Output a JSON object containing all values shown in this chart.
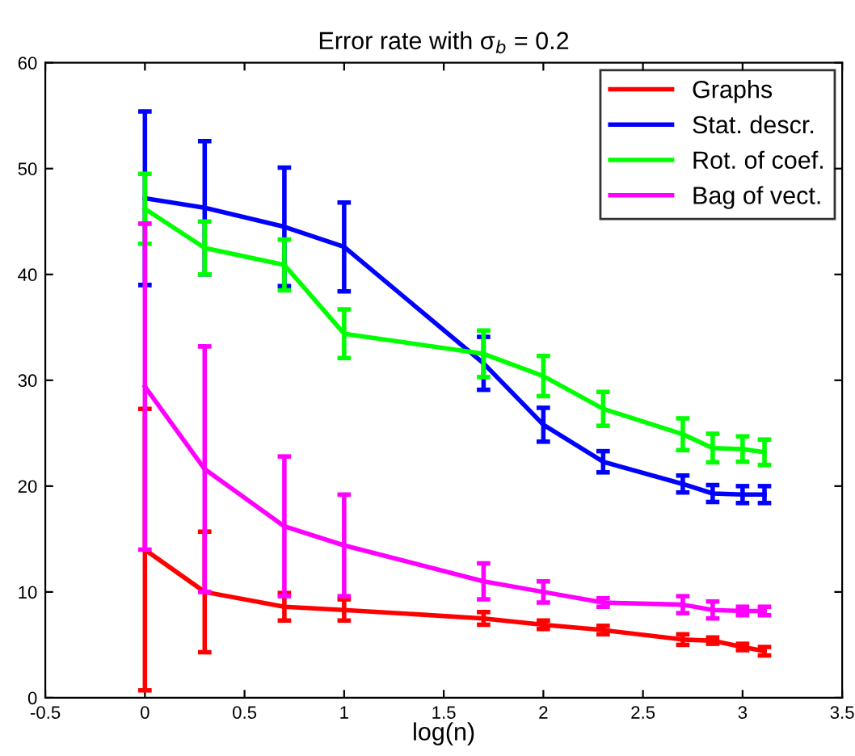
{
  "chart_data": {
    "type": "line",
    "title": "Error rate with σ$_{b}$ = 0.2",
    "xlabel": "log(n)",
    "x": [
      0,
      0.3,
      0.7,
      1,
      1.7,
      2,
      2.3,
      2.7,
      2.85,
      3,
      3.11
    ],
    "series": [
      {
        "name": "Graphs",
        "color": "#ff0000",
        "values": [
          14,
          10,
          8.6,
          8.3,
          7.5,
          6.9,
          6.4,
          5.5,
          5.4,
          4.8,
          4.4
        ],
        "errors": [
          13.3,
          5.7,
          1.3,
          1,
          0.6,
          0.4,
          0.4,
          0.5,
          0.3,
          0.3,
          0.4
        ]
      },
      {
        "name": "Stat. descr.",
        "color": "#0000ff",
        "values": [
          47.2,
          46.3,
          44.5,
          42.6,
          31.6,
          25.8,
          22.3,
          20.2,
          19.3,
          19.2,
          19.2
        ],
        "errors": [
          8.2,
          6.3,
          5.6,
          4.2,
          2.5,
          1.6,
          1,
          0.8,
          0.8,
          0.8,
          0.8
        ]
      },
      {
        "name": "Rot. of coef.",
        "color": "#00ff00",
        "values": [
          46.2,
          42.5,
          40.9,
          34.4,
          32.5,
          30.4,
          27.3,
          24.9,
          23.6,
          23.5,
          23.2
        ],
        "errors": [
          3.3,
          2.5,
          2.4,
          2.3,
          2.2,
          1.9,
          1.6,
          1.5,
          1.35,
          1.2,
          1.2
        ]
      },
      {
        "name": "Bag of vect.",
        "color": "#ff00ff",
        "values": [
          29.4,
          21.6,
          16.2,
          14.4,
          11,
          10,
          9,
          8.8,
          8.3,
          8.2,
          8.2
        ],
        "errors": [
          15.4,
          11.6,
          6.6,
          4.8,
          1.7,
          1,
          0.4,
          0.8,
          0.8,
          0.4,
          0.4
        ]
      }
    ],
    "xlim": [
      -0.5,
      3.5
    ],
    "xticks": [
      -0.5,
      0,
      0.5,
      1,
      1.5,
      2,
      2.5,
      3,
      3.5
    ],
    "ylim": [
      0,
      60
    ],
    "yticks": [
      0,
      10,
      20,
      30,
      40,
      50,
      60
    ],
    "legend": "top right",
    "grid": false
  }
}
